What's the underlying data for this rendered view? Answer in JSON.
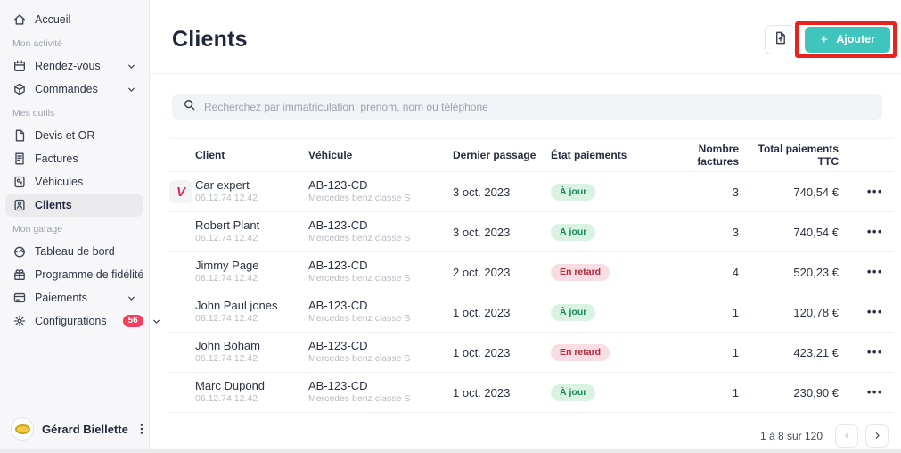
{
  "colors": {
    "accent_teal": "#3fc5bc",
    "annotation_red": "#e8231f",
    "status_ok_bg": "#d9f2e4",
    "status_ok_text": "#17875c",
    "status_late_bg": "#f8dde2",
    "status_late_text": "#b02a40",
    "sidebar_badge": "#f43f5e",
    "logo_pink": "#f0254e"
  },
  "sidebar": {
    "sections": [
      {
        "label": "",
        "items": [
          {
            "id": "accueil",
            "label": "Accueil",
            "icon": "home"
          }
        ]
      },
      {
        "label": "Mon activité",
        "items": [
          {
            "id": "rendez-vous",
            "label": "Rendez-vous",
            "icon": "calendar",
            "chevron": true
          },
          {
            "id": "commandes",
            "label": "Commandes",
            "icon": "package",
            "chevron": true
          }
        ]
      },
      {
        "label": "Mes outils",
        "items": [
          {
            "id": "devis-et-or",
            "label": "Devis et OR",
            "icon": "file"
          },
          {
            "id": "factures",
            "label": "Factures",
            "icon": "invoice"
          },
          {
            "id": "vehicules",
            "label": "Véhicules",
            "icon": "vehicle"
          },
          {
            "id": "clients",
            "label": "Clients",
            "icon": "clients",
            "active": true
          }
        ]
      },
      {
        "label": "Mon garage",
        "items": [
          {
            "id": "tableau-de-bord",
            "label": "Tableau de bord",
            "icon": "dashboard"
          },
          {
            "id": "programme-de-fidelite",
            "label": "Programme de fidélité",
            "icon": "gift"
          },
          {
            "id": "paiements",
            "label": "Paiements",
            "icon": "card",
            "chevron": true
          },
          {
            "id": "configurations",
            "label": "Configurations",
            "icon": "gear",
            "chevron": true,
            "badge": "56"
          }
        ]
      }
    ],
    "user": {
      "name": "Gérard Biellette"
    }
  },
  "header": {
    "title": "Clients",
    "add_plus": "+",
    "add_label": "Ajouter"
  },
  "search": {
    "placeholder": "Recherchez par immatriculation, prénom, nom ou téléphone"
  },
  "table": {
    "columns": [
      "Client",
      "Véhicule",
      "Dernier passage",
      "État paiements",
      "Nombre factures",
      "Total paiements TTC"
    ],
    "rows": [
      {
        "logo_letter": "V",
        "name": "Car expert",
        "phone": "06.12.74.12.42",
        "plate": "AB-123-CD",
        "model": "Mercedes benz classe S",
        "last_visit": "3 oct. 2023",
        "status": "À jour",
        "status_type": "ok",
        "invoices": "3",
        "total": "740,54 €",
        "actions": "•••"
      },
      {
        "logo_letter": "",
        "name": "Robert Plant",
        "phone": "06.12.74.12.42",
        "plate": "AB-123-CD",
        "model": "Mercedes benz classe S",
        "last_visit": "3 oct. 2023",
        "status": "À jour",
        "status_type": "ok",
        "invoices": "3",
        "total": "740,54 €",
        "actions": "•••"
      },
      {
        "logo_letter": "",
        "name": "Jimmy Page",
        "phone": "06.12.74.12.42",
        "plate": "AB-123-CD",
        "model": "Mercedes benz classe S",
        "last_visit": "2 oct. 2023",
        "status": "En retard",
        "status_type": "late",
        "invoices": "4",
        "total": "520,23 €",
        "actions": "•••"
      },
      {
        "logo_letter": "",
        "name": "John Paul jones",
        "phone": "06.12.74.12.42",
        "plate": "AB-123-CD",
        "model": "Mercedes benz classe S",
        "last_visit": "1 oct. 2023",
        "status": "À jour",
        "status_type": "ok",
        "invoices": "1",
        "total": "120,78 €",
        "actions": "•••"
      },
      {
        "logo_letter": "",
        "name": "John Boham",
        "phone": "06.12.74.12.42",
        "plate": "AB-123-CD",
        "model": "Mercedes benz classe S",
        "last_visit": "1 oct. 2023",
        "status": "En retard",
        "status_type": "late",
        "invoices": "1",
        "total": "423,21 €",
        "actions": "•••"
      },
      {
        "logo_letter": "",
        "name": "Marc Dupond",
        "phone": "06.12.74.12.42",
        "plate": "AB-123-CD",
        "model": "Mercedes benz classe S",
        "last_visit": "1 oct. 2023",
        "status": "À jour",
        "status_type": "ok",
        "invoices": "1",
        "total": "230,90 €",
        "actions": "•••"
      }
    ]
  },
  "pagination": {
    "label": "1 à 8 sur 120"
  },
  "annotation": {
    "target": "add-button",
    "color": "#e8231f"
  }
}
